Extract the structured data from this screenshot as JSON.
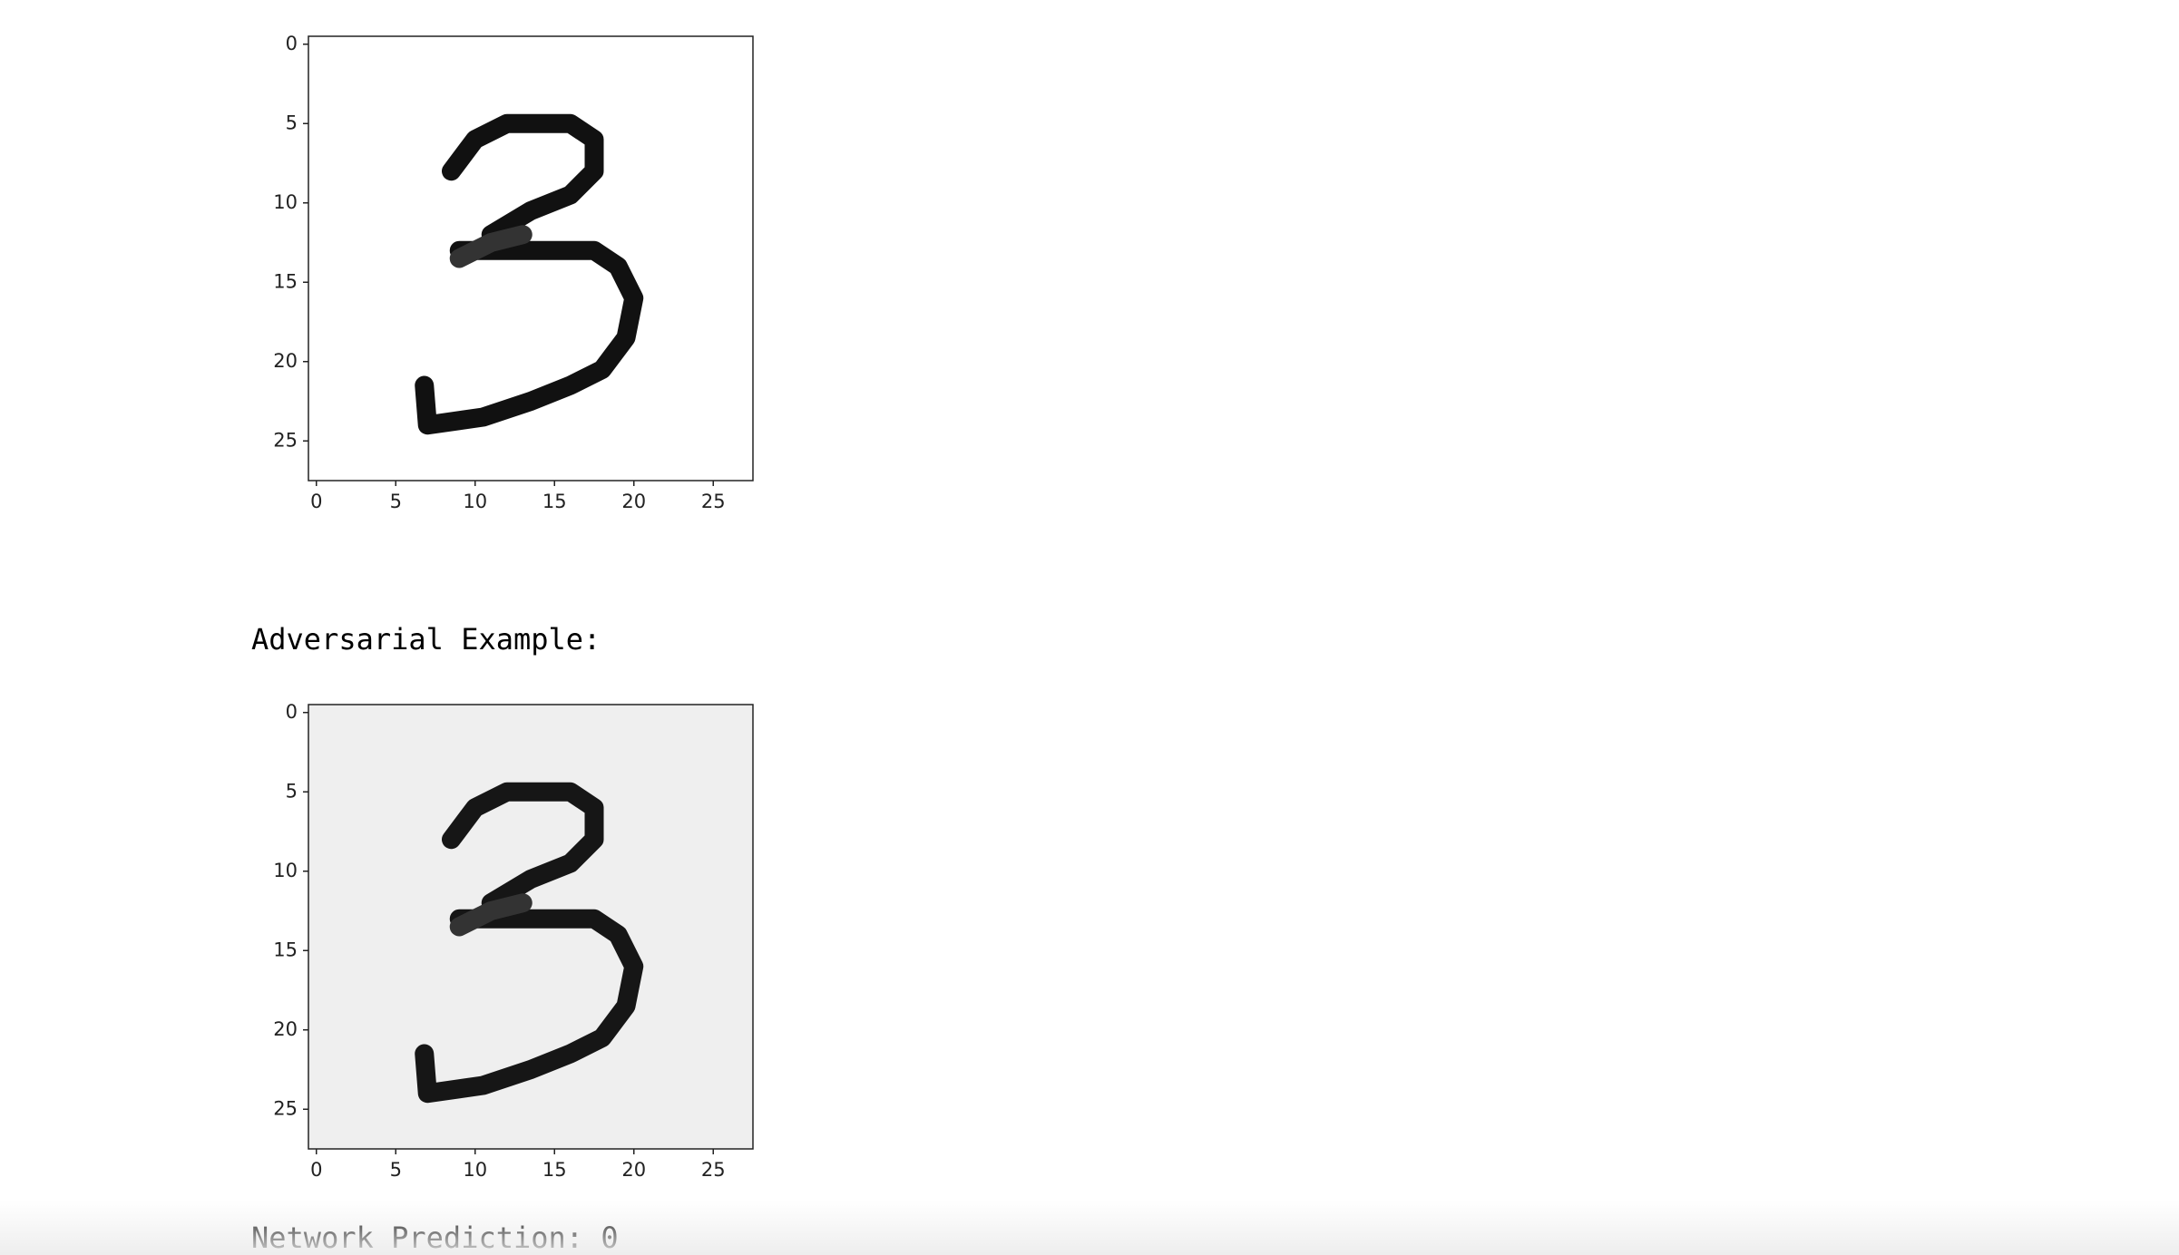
{
  "figures": [
    {
      "xlim": [
        -0.5,
        27.5
      ],
      "ylim": [
        27.5,
        -0.5
      ],
      "xticks": [
        0,
        5,
        10,
        15,
        20,
        25
      ],
      "yticks": [
        0,
        5,
        10,
        15,
        20,
        25
      ]
    },
    {
      "xlim": [
        -0.5,
        27.5
      ],
      "ylim": [
        27.5,
        -0.5
      ],
      "xticks": [
        0,
        5,
        10,
        15,
        20,
        25
      ],
      "yticks": [
        0,
        5,
        10,
        15,
        20,
        25
      ]
    }
  ],
  "adversarial_label": "Adversarial Example:",
  "prediction": "Network Prediction: 0"
}
